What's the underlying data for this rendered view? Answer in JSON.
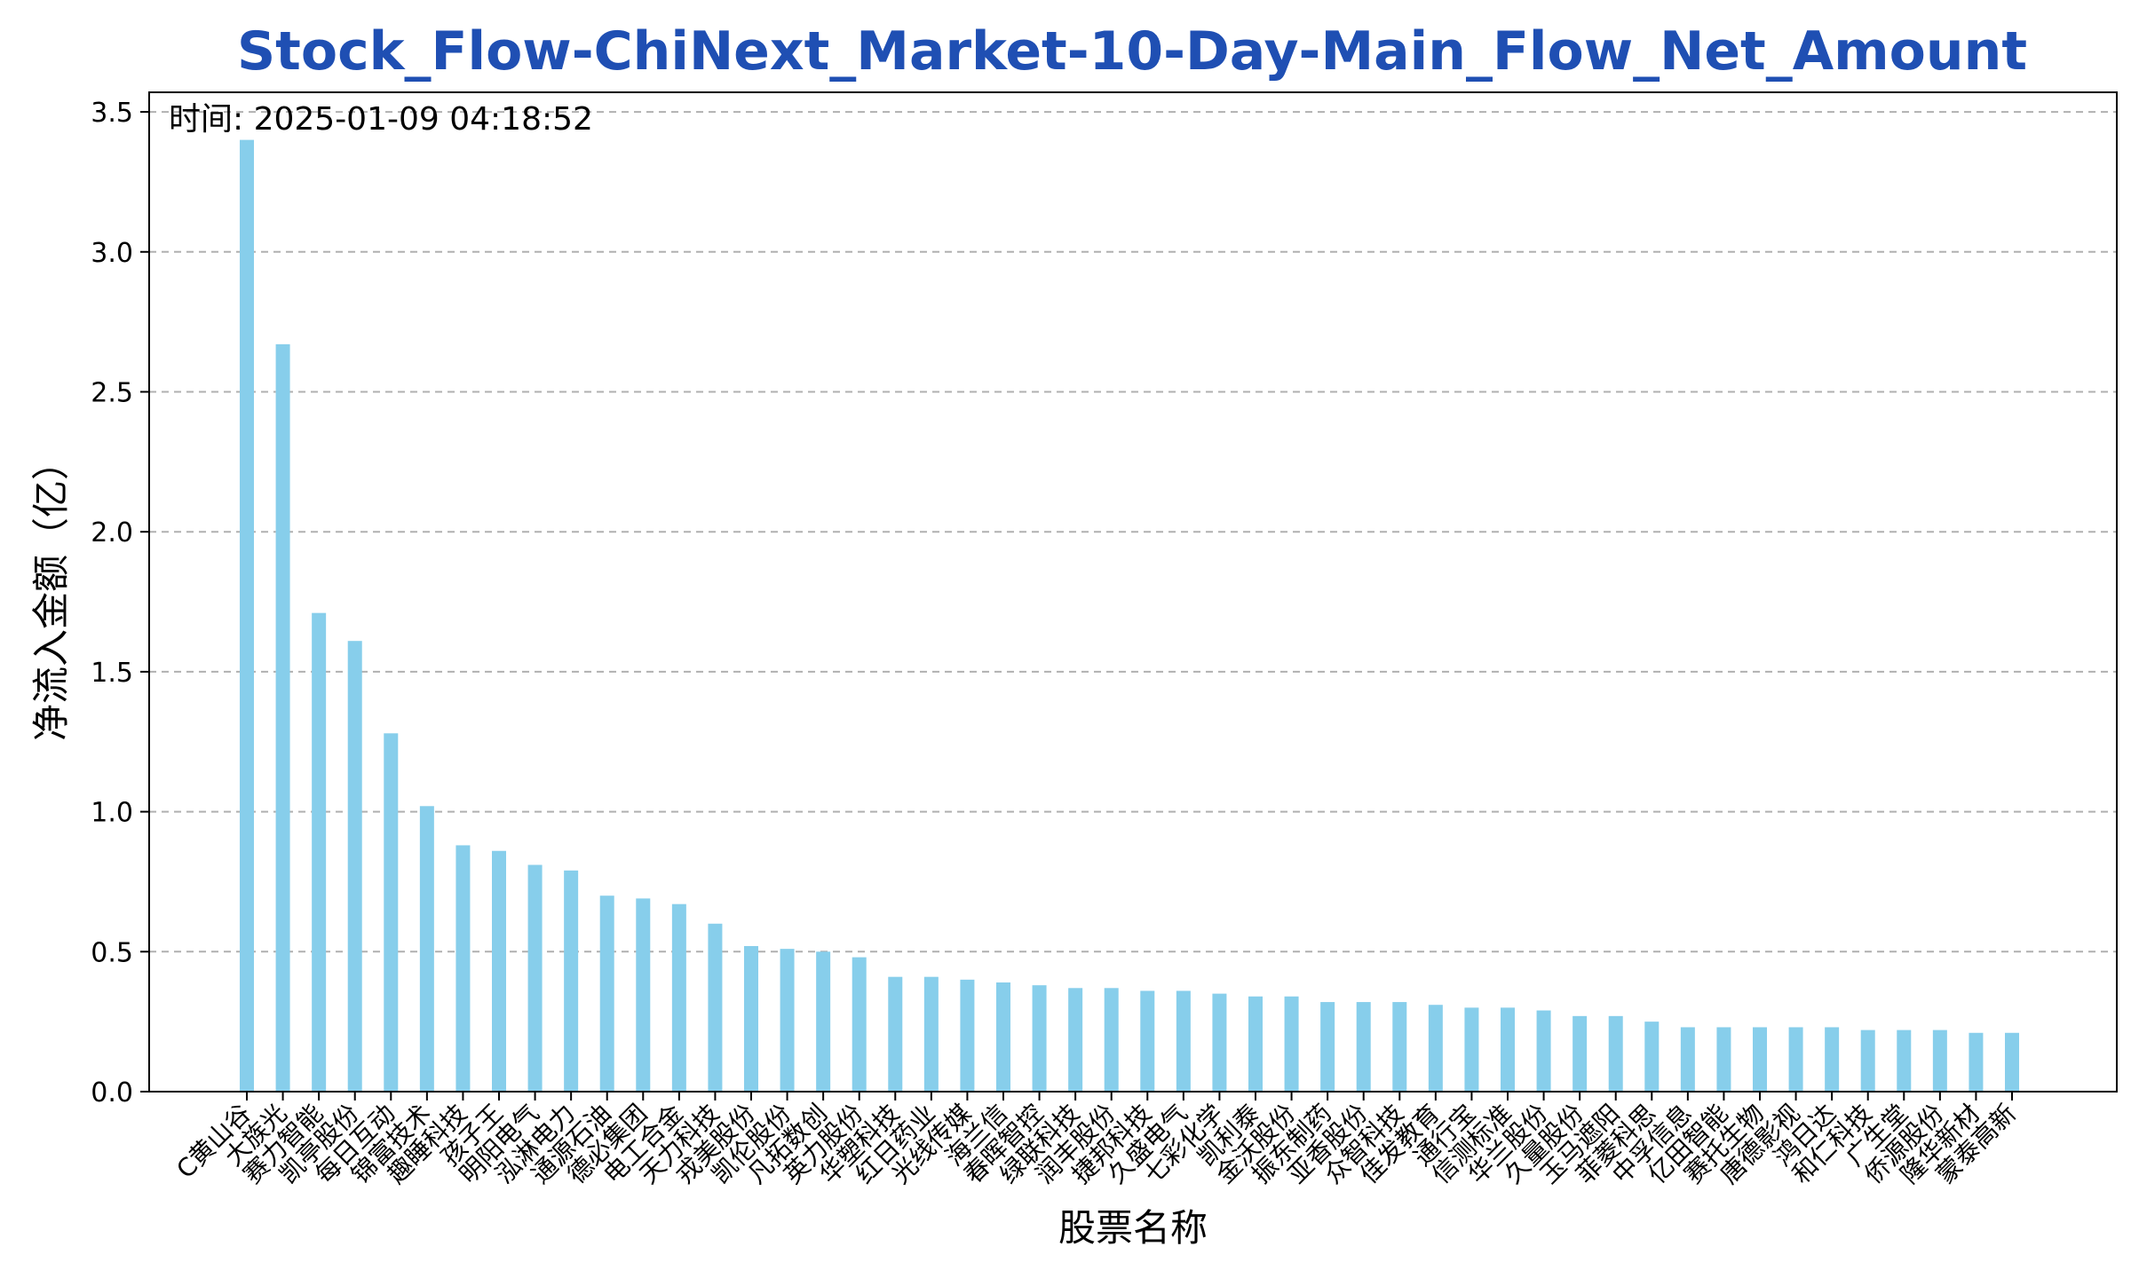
{
  "chart_data": {
    "type": "bar",
    "title": "Stock_Flow-ChiNext_Market-10-Day-Main_Flow_Net_Amount",
    "annotation": "时间: 2025-01-09 04:18:52",
    "xlabel": "股票名称",
    "ylabel": "净流入金额（亿）",
    "ylim": [
      0,
      3.57
    ],
    "yticks": [
      "0.0",
      "0.5",
      "1.0",
      "1.5",
      "2.0",
      "2.5",
      "3.0",
      "3.5"
    ],
    "grid": "y-dashed",
    "categories": [
      "C黄山谷",
      "大族光",
      "赛力智能",
      "凯亭股份",
      "每日互动",
      "锦富技术",
      "趣睡科技",
      "孩子王",
      "明阳电气",
      "泓淋电力",
      "通源石油",
      "德必集团",
      "电工合金",
      "天力科技",
      "戎美股份",
      "凯伦股份",
      "凡拓数创",
      "英力股份",
      "华塑科技",
      "红日药业",
      "光线传媒",
      "海兰信",
      "春晖智控",
      "绿联科技",
      "润丰股份",
      "捷邦科技",
      "久盛电气",
      "七彩化学",
      "凯利泰",
      "金沃股份",
      "振东制药",
      "亚香股份",
      "众智科技",
      "佳发教育",
      "通行宝",
      "信测标准",
      "华兰股份",
      "久量股份",
      "玉马遮阳",
      "菲菱科思",
      "中孚信息",
      "亿田智能",
      "赛托生物",
      "唐德影视",
      "鸿日达",
      "和仁科技",
      "广生堂",
      "侨源股份",
      "隆华新材",
      "蒙泰高新"
    ],
    "values": [
      3.4,
      2.67,
      1.71,
      1.61,
      1.28,
      1.02,
      0.88,
      0.86,
      0.81,
      0.79,
      0.7,
      0.69,
      0.67,
      0.6,
      0.52,
      0.51,
      0.5,
      0.48,
      0.41,
      0.41,
      0.4,
      0.39,
      0.38,
      0.37,
      0.37,
      0.36,
      0.36,
      0.35,
      0.34,
      0.34,
      0.32,
      0.32,
      0.32,
      0.31,
      0.3,
      0.3,
      0.29,
      0.27,
      0.27,
      0.25,
      0.23,
      0.23,
      0.23,
      0.23,
      0.23,
      0.22,
      0.22,
      0.22,
      0.21,
      0.21
    ],
    "colors": {
      "bar": "#87ceeb",
      "title": "#1f4fb3",
      "grid": "#b0b0b0",
      "axis": "#000000"
    }
  }
}
